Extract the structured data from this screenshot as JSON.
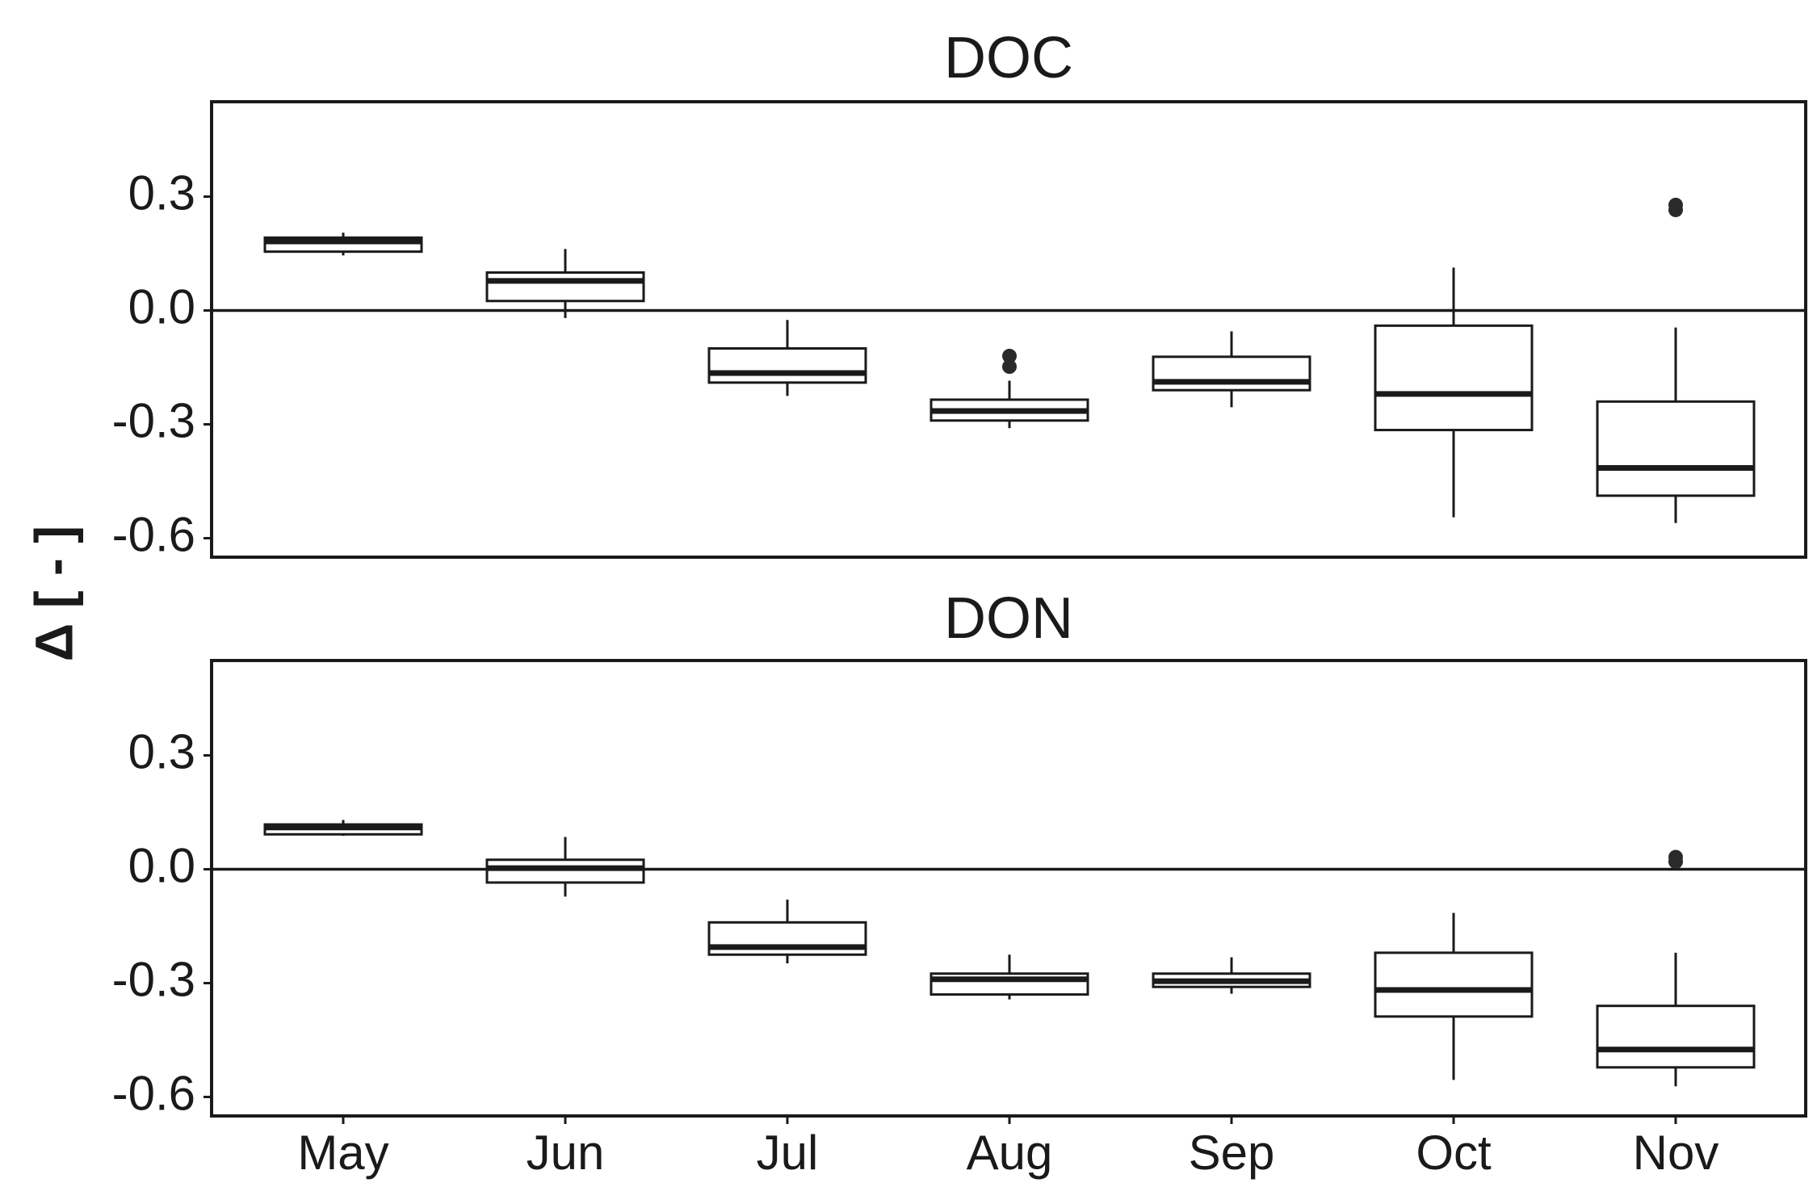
{
  "chart_data": {
    "type": "boxplot",
    "ylabel": "Δ [ - ]",
    "categories": [
      "May",
      "Jun",
      "Jul",
      "Aug",
      "Sep",
      "Oct",
      "Nov"
    ],
    "ylim": [
      -0.65,
      0.55
    ],
    "yticks": [
      0.3,
      0.0,
      -0.3,
      -0.6
    ],
    "ytick_labels": [
      "0.3",
      "0.0",
      "-0.3",
      "-0.6"
    ],
    "reference_line": 0.0,
    "panels": [
      {
        "title": "DOC",
        "boxes": [
          {
            "category": "May",
            "whisker_low": 0.145,
            "q1": 0.155,
            "median": 0.182,
            "q3": 0.192,
            "whisker_high": 0.205,
            "outliers": []
          },
          {
            "category": "Jun",
            "whisker_low": -0.02,
            "q1": 0.025,
            "median": 0.078,
            "q3": 0.1,
            "whisker_high": 0.162,
            "outliers": []
          },
          {
            "category": "Jul",
            "whisker_low": -0.225,
            "q1": -0.19,
            "median": -0.165,
            "q3": -0.1,
            "whisker_high": -0.025,
            "outliers": []
          },
          {
            "category": "Aug",
            "whisker_low": -0.31,
            "q1": -0.29,
            "median": -0.265,
            "q3": -0.235,
            "whisker_high": -0.185,
            "outliers": [
              -0.12,
              -0.148
            ]
          },
          {
            "category": "Sep",
            "whisker_low": -0.255,
            "q1": -0.21,
            "median": -0.188,
            "q3": -0.122,
            "whisker_high": -0.055,
            "outliers": []
          },
          {
            "category": "Oct",
            "whisker_low": -0.545,
            "q1": -0.315,
            "median": -0.22,
            "q3": -0.04,
            "whisker_high": 0.113,
            "outliers": []
          },
          {
            "category": "Nov",
            "whisker_low": -0.56,
            "q1": -0.488,
            "median": -0.415,
            "q3": -0.24,
            "whisker_high": -0.045,
            "outliers": [
              0.278,
              0.265
            ]
          }
        ]
      },
      {
        "title": "DON",
        "boxes": [
          {
            "category": "May",
            "whisker_low": 0.088,
            "q1": 0.092,
            "median": 0.11,
            "q3": 0.118,
            "whisker_high": 0.13,
            "outliers": []
          },
          {
            "category": "Jun",
            "whisker_low": -0.072,
            "q1": -0.035,
            "median": 0.003,
            "q3": 0.025,
            "whisker_high": 0.085,
            "outliers": []
          },
          {
            "category": "Jul",
            "whisker_low": -0.248,
            "q1": -0.225,
            "median": -0.205,
            "q3": -0.14,
            "whisker_high": -0.08,
            "outliers": []
          },
          {
            "category": "Aug",
            "whisker_low": -0.343,
            "q1": -0.33,
            "median": -0.29,
            "q3": -0.275,
            "whisker_high": -0.225,
            "outliers": []
          },
          {
            "category": "Sep",
            "whisker_low": -0.328,
            "q1": -0.31,
            "median": -0.295,
            "q3": -0.275,
            "whisker_high": -0.232,
            "outliers": []
          },
          {
            "category": "Oct",
            "whisker_low": -0.555,
            "q1": -0.388,
            "median": -0.318,
            "q3": -0.22,
            "whisker_high": -0.115,
            "outliers": []
          },
          {
            "category": "Nov",
            "whisker_low": -0.572,
            "q1": -0.522,
            "median": -0.475,
            "q3": -0.36,
            "whisker_high": -0.22,
            "outliers": [
              0.032,
              0.02
            ]
          }
        ]
      }
    ]
  }
}
